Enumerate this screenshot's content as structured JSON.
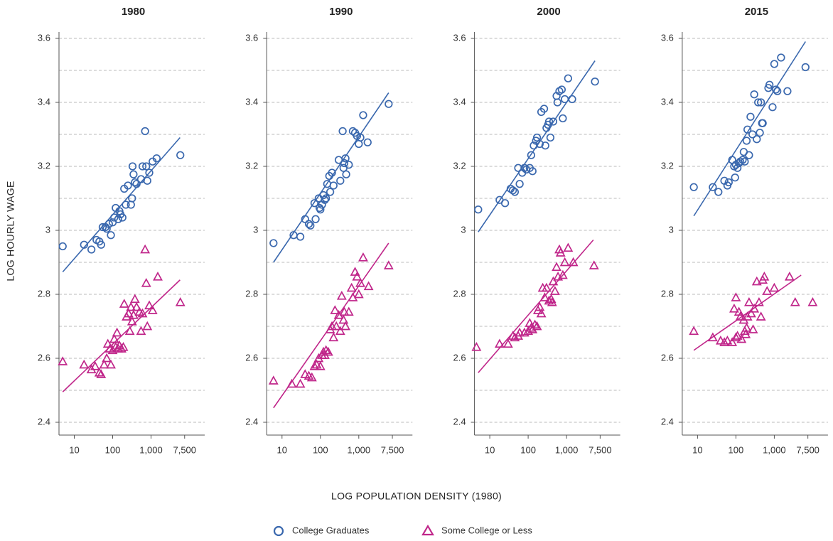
{
  "x_label": "LOG POPULATION DENSITY (1980)",
  "y_label": "LOG HOURLY WAGE",
  "chart_data": [
    {
      "type": "scatter",
      "title": "1980",
      "xscale": "log",
      "xlim": [
        4,
        25000
      ],
      "ylim": [
        2.36,
        3.62
      ],
      "xticks": [
        10,
        100,
        {
          "value": 1000,
          "label": "1,000"
        },
        {
          "value": 7500,
          "label": "7,500"
        }
      ],
      "yticks": [
        2.4,
        2.6,
        2.8,
        3,
        3.2,
        3.4,
        3.6
      ],
      "ygrid": [
        2.4,
        2.5,
        2.6,
        2.7,
        2.8,
        2.9,
        3.0,
        3.1,
        3.2,
        3.3,
        3.4,
        3.5,
        3.6
      ],
      "series": [
        {
          "name": "College Graduates",
          "color": "#3a68ae",
          "marker": "circle",
          "x": [
            5,
            18,
            28,
            38,
            45,
            50,
            55,
            65,
            70,
            80,
            90,
            100,
            110,
            120,
            140,
            150,
            160,
            180,
            200,
            220,
            250,
            300,
            320,
            330,
            350,
            380,
            420,
            550,
            600,
            700,
            750,
            800,
            900,
            1100,
            1400,
            5800
          ],
          "values": [
            2.95,
            2.955,
            2.94,
            2.97,
            2.965,
            2.955,
            3.01,
            3.01,
            3.005,
            3.02,
            2.985,
            3.025,
            3.04,
            3.07,
            3.035,
            3.06,
            3.05,
            3.04,
            3.13,
            3.08,
            3.14,
            3.08,
            3.1,
            3.2,
            3.175,
            3.15,
            3.145,
            3.16,
            3.2,
            3.31,
            3.2,
            3.155,
            3.18,
            3.215,
            3.225,
            3.235
          ],
          "fit_x": [
            5,
            5700
          ],
          "fit_values": [
            2.87,
            3.29
          ]
        },
        {
          "name": "Some College or Less",
          "color": "#c0268a",
          "marker": "triangle",
          "x": [
            5,
            18,
            28,
            35,
            45,
            50,
            60,
            70,
            75,
            85,
            90,
            100,
            110,
            120,
            130,
            140,
            150,
            170,
            190,
            200,
            230,
            260,
            280,
            300,
            320,
            350,
            380,
            420,
            500,
            550,
            600,
            700,
            750,
            800,
            900,
            1100,
            1500,
            5800
          ],
          "values": [
            2.59,
            2.58,
            2.565,
            2.575,
            2.555,
            2.55,
            2.58,
            2.6,
            2.645,
            2.63,
            2.58,
            2.625,
            2.66,
            2.635,
            2.68,
            2.63,
            2.64,
            2.63,
            2.635,
            2.77,
            2.73,
            2.74,
            2.685,
            2.76,
            2.715,
            2.735,
            2.785,
            2.76,
            2.745,
            2.685,
            2.74,
            2.94,
            2.835,
            2.7,
            2.765,
            2.75,
            2.855,
            2.775
          ],
          "fit_x": [
            5,
            5700
          ],
          "fit_values": [
            2.495,
            2.845
          ]
        }
      ]
    },
    {
      "type": "scatter",
      "title": "1990",
      "xscale": "log",
      "xlim": [
        4,
        25000
      ],
      "ylim": [
        2.36,
        3.62
      ],
      "xticks": [
        10,
        100,
        {
          "value": 1000,
          "label": "1,000"
        },
        {
          "value": 7500,
          "label": "7,500"
        }
      ],
      "yticks": [
        2.4,
        2.6,
        2.8,
        3,
        3.2,
        3.4,
        3.6
      ],
      "ygrid": [
        2.4,
        2.5,
        2.6,
        2.7,
        2.8,
        2.9,
        3.0,
        3.1,
        3.2,
        3.3,
        3.4,
        3.5,
        3.6
      ],
      "series": [
        {
          "name": "College Graduates",
          "color": "#3a68ae",
          "marker": "circle",
          "x": [
            6,
            20,
            30,
            40,
            50,
            55,
            70,
            75,
            90,
            95,
            100,
            110,
            120,
            130,
            140,
            150,
            170,
            180,
            200,
            220,
            300,
            330,
            380,
            400,
            420,
            450,
            470,
            550,
            700,
            800,
            900,
            1000,
            1100,
            1300,
            1700,
            6000
          ],
          "values": [
            2.96,
            2.985,
            2.98,
            3.035,
            3.02,
            3.015,
            3.085,
            3.035,
            3.1,
            3.07,
            3.065,
            3.08,
            3.11,
            3.095,
            3.1,
            3.145,
            3.17,
            3.12,
            3.18,
            3.14,
            3.22,
            3.155,
            3.31,
            3.195,
            3.21,
            3.225,
            3.175,
            3.205,
            3.31,
            3.305,
            3.295,
            3.27,
            3.29,
            3.36,
            3.275,
            3.395
          ],
          "fit_x": [
            6,
            6000
          ],
          "fit_values": [
            2.9,
            3.43
          ]
        },
        {
          "name": "Some College or Less",
          "color": "#c0268a",
          "marker": "triangle",
          "x": [
            6,
            18,
            30,
            40,
            50,
            60,
            70,
            80,
            90,
            100,
            110,
            120,
            130,
            140,
            160,
            180,
            200,
            220,
            240,
            260,
            300,
            330,
            360,
            400,
            420,
            450,
            550,
            650,
            700,
            800,
            900,
            1000,
            1100,
            1300,
            1800,
            6000
          ],
          "values": [
            2.53,
            2.52,
            2.52,
            2.55,
            2.545,
            2.54,
            2.575,
            2.58,
            2.6,
            2.575,
            2.61,
            2.62,
            2.61,
            2.625,
            2.62,
            2.69,
            2.7,
            2.665,
            2.75,
            2.7,
            2.735,
            2.685,
            2.795,
            2.72,
            2.745,
            2.7,
            2.745,
            2.82,
            2.79,
            2.87,
            2.855,
            2.8,
            2.835,
            2.915,
            2.825,
            2.89
          ],
          "fit_x": [
            6,
            6000
          ],
          "fit_values": [
            2.445,
            2.96
          ]
        }
      ]
    },
    {
      "type": "scatter",
      "title": "2000",
      "xscale": "log",
      "xlim": [
        4,
        25000
      ],
      "ylim": [
        2.36,
        3.62
      ],
      "xticks": [
        10,
        100,
        {
          "value": 1000,
          "label": "1,000"
        },
        {
          "value": 7500,
          "label": "7,500"
        }
      ],
      "yticks": [
        2.4,
        2.6,
        2.8,
        3,
        3.2,
        3.4,
        3.6
      ],
      "ygrid": [
        2.4,
        2.5,
        2.6,
        2.7,
        2.8,
        2.9,
        3.0,
        3.1,
        3.2,
        3.3,
        3.4,
        3.5,
        3.6
      ],
      "series": [
        {
          "name": "College Graduates",
          "color": "#3a68ae",
          "marker": "circle",
          "x": [
            5,
            18,
            25,
            35,
            40,
            45,
            55,
            60,
            70,
            80,
            90,
            110,
            120,
            130,
            140,
            160,
            170,
            200,
            220,
            260,
            280,
            300,
            330,
            350,
            380,
            450,
            550,
            580,
            650,
            750,
            800,
            900,
            1100,
            1400,
            5500
          ],
          "values": [
            3.065,
            3.095,
            3.085,
            3.13,
            3.125,
            3.12,
            3.195,
            3.145,
            3.18,
            3.195,
            3.19,
            3.195,
            3.235,
            3.185,
            3.265,
            3.28,
            3.29,
            3.27,
            3.37,
            3.38,
            3.265,
            3.32,
            3.33,
            3.34,
            3.29,
            3.34,
            3.42,
            3.4,
            3.435,
            3.44,
            3.35,
            3.41,
            3.475,
            3.41,
            3.465
          ],
          "fit_x": [
            5,
            5500
          ],
          "fit_values": [
            2.995,
            3.53
          ]
        },
        {
          "name": "Some College or Less",
          "color": "#c0268a",
          "marker": "triangle",
          "x": [
            4.5,
            18,
            30,
            40,
            45,
            55,
            60,
            80,
            100,
            110,
            120,
            130,
            150,
            170,
            180,
            200,
            220,
            240,
            270,
            300,
            350,
            400,
            420,
            450,
            500,
            550,
            600,
            650,
            700,
            800,
            900,
            1100,
            1500,
            5200
          ],
          "values": [
            2.635,
            2.645,
            2.645,
            2.67,
            2.665,
            2.67,
            2.68,
            2.68,
            2.685,
            2.71,
            2.695,
            2.69,
            2.705,
            2.7,
            2.75,
            2.76,
            2.74,
            2.82,
            2.79,
            2.82,
            2.78,
            2.785,
            2.775,
            2.84,
            2.81,
            2.885,
            2.855,
            2.94,
            2.93,
            2.86,
            2.9,
            2.945,
            2.9,
            2.89
          ],
          "fit_x": [
            5,
            5000
          ],
          "fit_values": [
            2.555,
            2.97
          ]
        }
      ]
    },
    {
      "type": "scatter",
      "title": "2015",
      "xscale": "log",
      "xlim": [
        4,
        25000
      ],
      "ylim": [
        2.36,
        3.62
      ],
      "xticks": [
        10,
        100,
        {
          "value": 1000,
          "label": "1,000"
        },
        {
          "value": 7500,
          "label": "7,500"
        }
      ],
      "yticks": [
        2.4,
        2.6,
        2.8,
        3,
        3.2,
        3.4,
        3.6
      ],
      "ygrid": [
        2.4,
        2.5,
        2.6,
        2.7,
        2.8,
        2.9,
        3.0,
        3.1,
        3.2,
        3.3,
        3.4,
        3.5,
        3.6
      ],
      "series": [
        {
          "name": "College Graduates",
          "color": "#3a68ae",
          "marker": "circle",
          "x": [
            8,
            25,
            35,
            50,
            60,
            65,
            80,
            90,
            95,
            100,
            110,
            120,
            130,
            150,
            160,
            170,
            190,
            200,
            220,
            240,
            270,
            300,
            350,
            380,
            420,
            450,
            480,
            500,
            700,
            750,
            900,
            1000,
            1100,
            1200,
            1500,
            2200,
            6500
          ],
          "values": [
            3.135,
            3.135,
            3.12,
            3.155,
            3.14,
            3.15,
            3.22,
            3.2,
            3.165,
            3.205,
            3.195,
            3.21,
            3.215,
            3.22,
            3.245,
            3.215,
            3.28,
            3.315,
            3.235,
            3.355,
            3.3,
            3.425,
            3.285,
            3.4,
            3.305,
            3.4,
            3.335,
            3.335,
            3.445,
            3.455,
            3.385,
            3.52,
            3.44,
            3.435,
            3.54,
            3.435,
            3.51
          ],
          "fit_x": [
            8,
            6500
          ],
          "fit_values": [
            3.045,
            3.59
          ]
        },
        {
          "name": "Some College or Less",
          "color": "#c0268a",
          "marker": "triangle",
          "x": [
            8,
            25,
            40,
            50,
            60,
            80,
            90,
            100,
            100,
            110,
            120,
            130,
            140,
            160,
            170,
            180,
            190,
            200,
            220,
            250,
            280,
            300,
            350,
            400,
            450,
            500,
            550,
            650,
            1000,
            2500,
            3500,
            10000
          ],
          "values": [
            2.685,
            2.665,
            2.655,
            2.65,
            2.655,
            2.65,
            2.755,
            2.665,
            2.79,
            2.67,
            2.745,
            2.73,
            2.66,
            2.72,
            2.685,
            2.675,
            2.695,
            2.73,
            2.775,
            2.74,
            2.69,
            2.755,
            2.84,
            2.775,
            2.73,
            2.845,
            2.855,
            2.81,
            2.82,
            2.855,
            2.775,
            2.775
          ],
          "fit_x": [
            8,
            5000
          ],
          "fit_values": [
            2.625,
            2.86
          ]
        }
      ]
    }
  ]
}
